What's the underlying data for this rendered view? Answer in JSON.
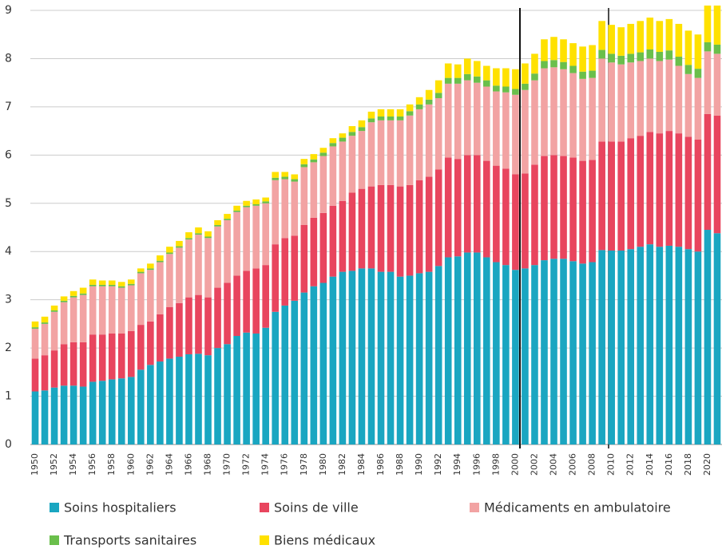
{
  "chart_data": {
    "type": "stacked_bar",
    "categories": [
      "1950",
      null,
      "1952",
      null,
      "1954",
      null,
      "1956",
      null,
      "1958",
      null,
      "1960",
      null,
      "1962",
      null,
      "1964",
      null,
      "1966",
      null,
      "1968",
      null,
      "1970",
      null,
      "1972",
      null,
      "1974",
      null,
      "1976",
      null,
      "1978",
      null,
      "1980",
      null,
      "1982",
      null,
      "1984",
      null,
      "1986",
      null,
      "1988",
      null,
      "1990",
      null,
      "1992",
      null,
      "1994",
      null,
      "1996",
      null,
      "1998",
      null,
      "2000",
      null,
      "2002",
      null,
      "2004",
      null,
      "2006",
      null,
      "2008",
      null,
      "2010",
      null,
      "2012",
      null,
      "2014",
      null,
      "2016",
      null,
      "2018",
      null,
      "2020",
      null
    ],
    "series": [
      {
        "name": "Soins hospitaliers",
        "color": "#1aa6c1",
        "values": [
          1.1,
          1.12,
          1.18,
          1.22,
          1.22,
          1.2,
          1.3,
          1.32,
          1.35,
          1.37,
          1.4,
          1.55,
          1.65,
          1.72,
          1.78,
          1.82,
          1.87,
          1.88,
          1.85,
          2.0,
          2.08,
          2.25,
          2.32,
          2.3,
          2.42,
          2.75,
          2.88,
          2.98,
          3.15,
          3.28,
          3.35,
          3.48,
          3.58,
          3.6,
          3.65,
          3.65,
          3.58,
          3.58,
          3.48,
          3.5,
          3.55,
          3.58,
          3.7,
          3.88,
          3.9,
          3.98,
          3.98,
          3.88,
          3.78,
          3.72,
          3.62,
          3.65,
          3.72,
          3.82,
          3.85,
          3.85,
          3.8,
          3.75,
          3.78,
          4.03,
          4.02,
          4.02,
          4.05,
          4.1,
          4.15,
          4.1,
          4.12,
          4.1,
          4.05,
          4.0,
          4.45,
          4.38
        ]
      },
      {
        "name": "Soins de ville",
        "color": "#e8455e",
        "values": [
          0.68,
          0.73,
          0.77,
          0.86,
          0.9,
          0.92,
          0.98,
          0.96,
          0.95,
          0.93,
          0.95,
          0.93,
          0.9,
          0.98,
          1.07,
          1.11,
          1.18,
          1.22,
          1.2,
          1.25,
          1.27,
          1.25,
          1.28,
          1.35,
          1.3,
          1.4,
          1.4,
          1.35,
          1.4,
          1.42,
          1.45,
          1.47,
          1.47,
          1.62,
          1.65,
          1.7,
          1.8,
          1.8,
          1.87,
          1.88,
          1.93,
          1.97,
          2.0,
          2.07,
          2.02,
          2.02,
          2.02,
          2.0,
          2.0,
          2.0,
          1.98,
          1.97,
          2.08,
          2.16,
          2.15,
          2.13,
          2.15,
          2.13,
          2.12,
          2.25,
          2.26,
          2.26,
          2.3,
          2.3,
          2.33,
          2.35,
          2.38,
          2.35,
          2.33,
          2.32,
          2.4,
          2.44
        ]
      },
      {
        "name": "Médicaments en ambulatoire",
        "color": "#f2a3a3",
        "values": [
          0.62,
          0.65,
          0.8,
          0.87,
          0.93,
          0.98,
          1.0,
          1.0,
          0.98,
          0.95,
          0.95,
          1.07,
          1.07,
          1.08,
          1.1,
          1.15,
          1.2,
          1.25,
          1.23,
          1.27,
          1.3,
          1.32,
          1.32,
          1.3,
          1.28,
          1.33,
          1.22,
          1.12,
          1.2,
          1.15,
          1.18,
          1.23,
          1.23,
          1.18,
          1.2,
          1.33,
          1.34,
          1.34,
          1.37,
          1.44,
          1.47,
          1.5,
          1.48,
          1.53,
          1.56,
          1.55,
          1.5,
          1.54,
          1.54,
          1.58,
          1.65,
          1.73,
          1.75,
          1.82,
          1.82,
          1.8,
          1.75,
          1.7,
          1.7,
          1.72,
          1.64,
          1.6,
          1.57,
          1.55,
          1.52,
          1.5,
          1.48,
          1.4,
          1.3,
          1.28,
          1.3,
          1.28
        ]
      },
      {
        "name": "Transports sanitaires",
        "color": "#6abf4b",
        "values": [
          0.03,
          0.03,
          0.03,
          0.03,
          0.03,
          0.03,
          0.03,
          0.03,
          0.03,
          0.03,
          0.03,
          0.03,
          0.03,
          0.03,
          0.03,
          0.03,
          0.03,
          0.03,
          0.03,
          0.03,
          0.03,
          0.03,
          0.03,
          0.03,
          0.04,
          0.05,
          0.05,
          0.05,
          0.06,
          0.06,
          0.07,
          0.07,
          0.08,
          0.08,
          0.08,
          0.08,
          0.08,
          0.08,
          0.08,
          0.09,
          0.1,
          0.1,
          0.11,
          0.12,
          0.12,
          0.13,
          0.13,
          0.13,
          0.12,
          0.12,
          0.12,
          0.13,
          0.14,
          0.15,
          0.15,
          0.15,
          0.15,
          0.15,
          0.15,
          0.18,
          0.18,
          0.18,
          0.18,
          0.18,
          0.19,
          0.19,
          0.19,
          0.19,
          0.19,
          0.19,
          0.19,
          0.19
        ]
      },
      {
        "name": "Biens médicaux",
        "color": "#ffe100",
        "values": [
          0.12,
          0.12,
          0.1,
          0.09,
          0.1,
          0.12,
          0.11,
          0.09,
          0.09,
          0.09,
          0.09,
          0.07,
          0.1,
          0.11,
          0.12,
          0.11,
          0.12,
          0.12,
          0.11,
          0.1,
          0.1,
          0.1,
          0.1,
          0.1,
          0.08,
          0.12,
          0.1,
          0.1,
          0.11,
          0.11,
          0.1,
          0.1,
          0.09,
          0.12,
          0.14,
          0.14,
          0.15,
          0.15,
          0.15,
          0.14,
          0.15,
          0.2,
          0.26,
          0.3,
          0.28,
          0.32,
          0.32,
          0.3,
          0.36,
          0.38,
          0.41,
          0.42,
          0.41,
          0.45,
          0.48,
          0.47,
          0.47,
          0.52,
          0.53,
          0.6,
          0.6,
          0.59,
          0.62,
          0.65,
          0.66,
          0.64,
          0.65,
          0.68,
          0.71,
          0.71,
          0.76,
          0.81
        ]
      }
    ],
    "ylim": [
      0,
      9
    ],
    "yticks": [
      0,
      1,
      2,
      3,
      4,
      5,
      6,
      7,
      8,
      9
    ],
    "grid": true
  }
}
